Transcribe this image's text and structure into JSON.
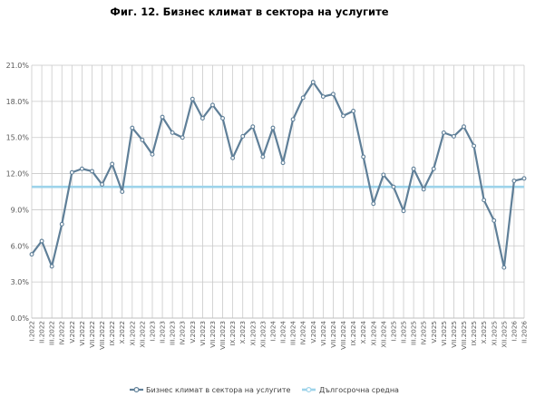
{
  "chart_data": {
    "type": "line",
    "title": "Фиг. 12. Бизнес климат в сектора на услугите",
    "xlabel": "",
    "ylabel": "",
    "ylim": [
      0,
      21
    ],
    "yticks": [
      0,
      3,
      6,
      9,
      12,
      15,
      18,
      21
    ],
    "ytick_labels": [
      "0.0%",
      "3.0%",
      "6.0%",
      "9.0%",
      "12.0%",
      "15.0%",
      "18.0%",
      "21.0%"
    ],
    "grid": "vertical and horizontal",
    "legend_position": "bottom",
    "categories": [
      "I.2022",
      "II.2022",
      "III.2022",
      "IV.2022",
      "V.2022",
      "VI.2022",
      "VII.2022",
      "VIII.2022",
      "IX.2022",
      "X.2022",
      "XI.2022",
      "XII.2022",
      "I.2023",
      "II.2023",
      "III.2023",
      "IV.2023",
      "V.2023",
      "VI.2023",
      "VII.2023",
      "VIII.2023",
      "IX.2023",
      "X.2023",
      "XI.2023",
      "XII.2023",
      "I.2024",
      "II.2024",
      "III.2024",
      "IV.2024",
      "V.2024",
      "VI.2024",
      "VII.2024",
      "VIII.2024",
      "IX.2024",
      "X.2024",
      "XI.2024",
      "XII.2024",
      "I.2025",
      "II.2025",
      "III.2025",
      "IV.2025",
      "V.2025",
      "VI.2025",
      "VII.2025",
      "VIII.2025",
      "IX.2025",
      "X.2025",
      "XI.2025",
      "XII.2025",
      "I.2026",
      "II.2026"
    ],
    "series": [
      {
        "name": "Бизнес климат в сектора на услугите",
        "color": "#5f7f98",
        "values": [
          5.3,
          6.4,
          4.3,
          7.8,
          12.1,
          12.4,
          12.2,
          11.1,
          12.8,
          10.5,
          15.8,
          14.8,
          13.6,
          16.7,
          15.4,
          15.0,
          18.2,
          16.6,
          17.7,
          16.6,
          13.3,
          15.1,
          15.9,
          13.4,
          15.8,
          12.9,
          16.5,
          18.3,
          19.6,
          18.4,
          18.6,
          16.8,
          17.2,
          13.4,
          9.5,
          11.9,
          10.9,
          8.9,
          12.4,
          10.7,
          12.4,
          15.4,
          15.1,
          15.9,
          14.3,
          9.8,
          8.1,
          4.2,
          11.4,
          11.6
        ]
      },
      {
        "name": "Дългосрочна средна",
        "color": "#9dd3ea",
        "values": [
          10.9,
          10.9,
          10.9,
          10.9,
          10.9,
          10.9,
          10.9,
          10.9,
          10.9,
          10.9,
          10.9,
          10.9,
          10.9,
          10.9,
          10.9,
          10.9,
          10.9,
          10.9,
          10.9,
          10.9,
          10.9,
          10.9,
          10.9,
          10.9,
          10.9,
          10.9,
          10.9,
          10.9,
          10.9,
          10.9,
          10.9,
          10.9,
          10.9,
          10.9,
          10.9,
          10.9,
          10.9,
          10.9,
          10.9,
          10.9,
          10.9,
          10.9,
          10.9,
          10.9,
          10.9,
          10.9,
          10.9,
          10.9,
          10.9,
          10.9
        ]
      }
    ]
  }
}
